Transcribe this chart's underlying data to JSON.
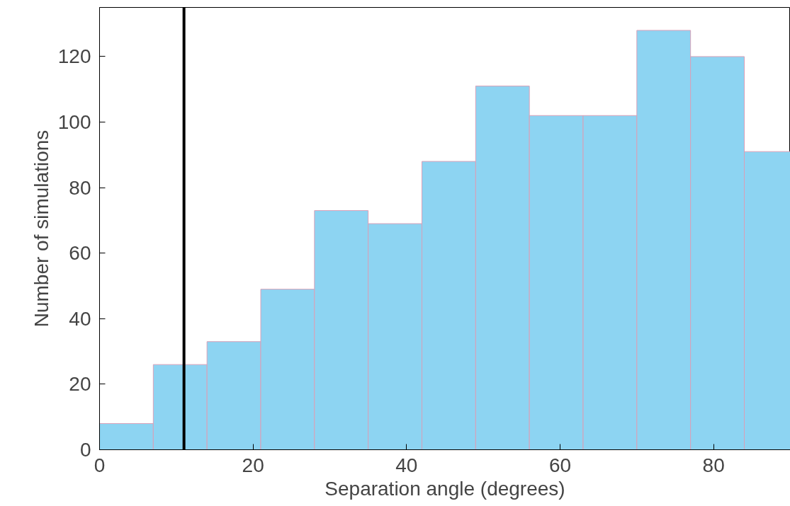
{
  "chart_data": {
    "type": "histogram",
    "xlabel": "Separation angle (degrees)",
    "ylabel": "Number of simulations",
    "bins": [
      0,
      7,
      14,
      21,
      28,
      35,
      42,
      49,
      56,
      63,
      70,
      77,
      84,
      90
    ],
    "values": [
      8,
      26,
      33,
      49,
      73,
      69,
      88,
      111,
      102,
      102,
      128,
      120,
      91
    ],
    "color": "#8dd4f2",
    "xlim": [
      0,
      90
    ],
    "ylim": [
      0,
      135
    ],
    "xticks": [
      0,
      20,
      40,
      60,
      80
    ],
    "yticks": [
      0,
      20,
      40,
      60,
      80,
      100,
      120
    ],
    "grid": false,
    "ref_lines": [
      {
        "axis": "x",
        "value": 11,
        "label": null,
        "color": "#000000"
      }
    ]
  }
}
